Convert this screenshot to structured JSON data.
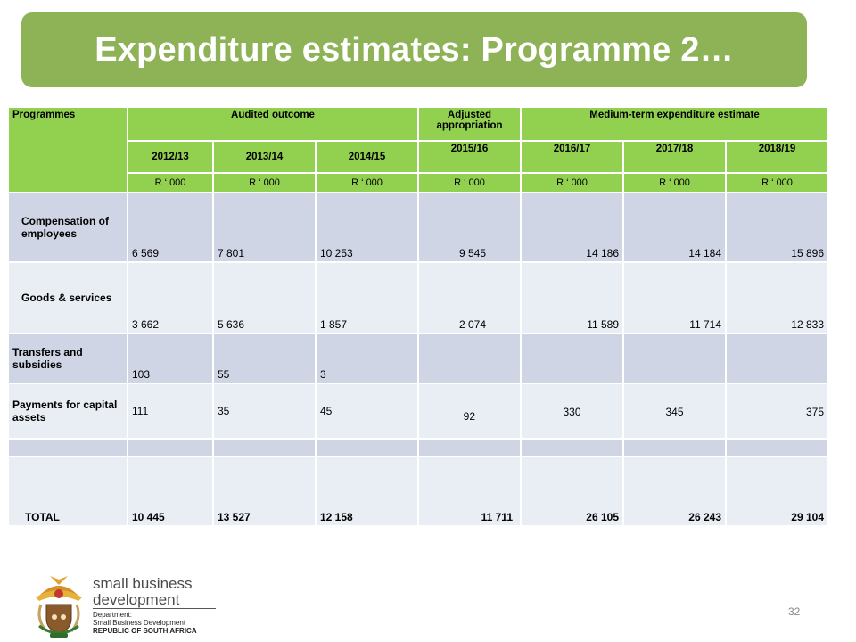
{
  "slide": {
    "title": "Expenditure estimates: Programme 2…",
    "page_number": "32"
  },
  "table": {
    "header": {
      "programmes": "Programmes",
      "audited": "Audited outcome",
      "adjusted": "Adjusted appropriation",
      "medium_term": "Medium-term expenditure estimate",
      "years": [
        "2012/13",
        "2013/14",
        "2014/15",
        "2015/16",
        "2016/17",
        "2017/18",
        "2018/19"
      ],
      "unit": "R ‘ 000"
    },
    "rows": [
      {
        "label": "Compensation of employees",
        "values": [
          "6 569",
          "7 801",
          "10 253",
          "9 545",
          "14 186",
          "14 184",
          "15 896"
        ]
      },
      {
        "label": "Goods & services",
        "values": [
          "3 662",
          "5 636",
          "1 857",
          "2 074",
          "11 589",
          "11 714",
          "12 833"
        ]
      },
      {
        "label": "Transfers and subsidies",
        "values": [
          "103",
          "55",
          "3",
          "",
          "",
          "",
          ""
        ]
      },
      {
        "label": "Payments for capital assets",
        "values": [
          "111",
          "35",
          "45",
          "92",
          "330",
          "345",
          "375"
        ]
      },
      {
        "label": "",
        "values": [
          "",
          "",
          "",
          "",
          "",
          "",
          ""
        ]
      },
      {
        "label": "TOTAL",
        "values": [
          "10 445",
          "13 527",
          "12 158",
          "11 711",
          "26 105",
          "26 243",
          "29 104"
        ]
      }
    ]
  },
  "footer": {
    "logo_line1": "small business",
    "logo_line2": "development",
    "dept_line1": "Department:",
    "dept_line2": "Small Business Development",
    "dept_line3": "REPUBLIC OF SOUTH AFRICA",
    "logo_icon": "coat-of-arms-icon"
  },
  "colors": {
    "title_bg": "#8db356",
    "header_bg": "#92d050",
    "row_dark": "#cfd5e5",
    "row_light": "#e9edf4"
  }
}
